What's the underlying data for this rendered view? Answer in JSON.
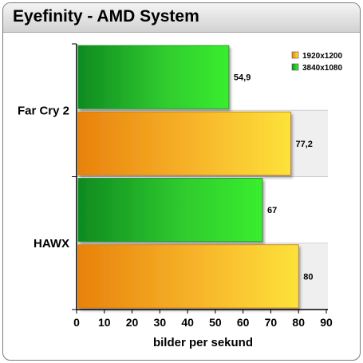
{
  "chart_title": "Eyefinity - AMD System",
  "chart_data": {
    "type": "bar",
    "orientation": "horizontal",
    "title": "Eyefinity - AMD System",
    "categories": [
      "Far Cry 2",
      "HAWX"
    ],
    "series": [
      {
        "name": "1920x1200",
        "values": [
          77.2,
          80
        ],
        "labels": [
          "77,2",
          "80"
        ],
        "color": "#f5a623"
      },
      {
        "name": "3840x1080",
        "values": [
          54.9,
          67
        ],
        "labels": [
          "54,9",
          "67"
        ],
        "color": "#2fc92f"
      }
    ],
    "xlabel": "bilder per sekund",
    "ylabel": "",
    "xlim": [
      0,
      90
    ],
    "x_ticks": [
      "0",
      "10",
      "20",
      "30",
      "40",
      "50",
      "60",
      "70",
      "80",
      "90"
    ],
    "legend_position": "top-right",
    "grid": false
  }
}
